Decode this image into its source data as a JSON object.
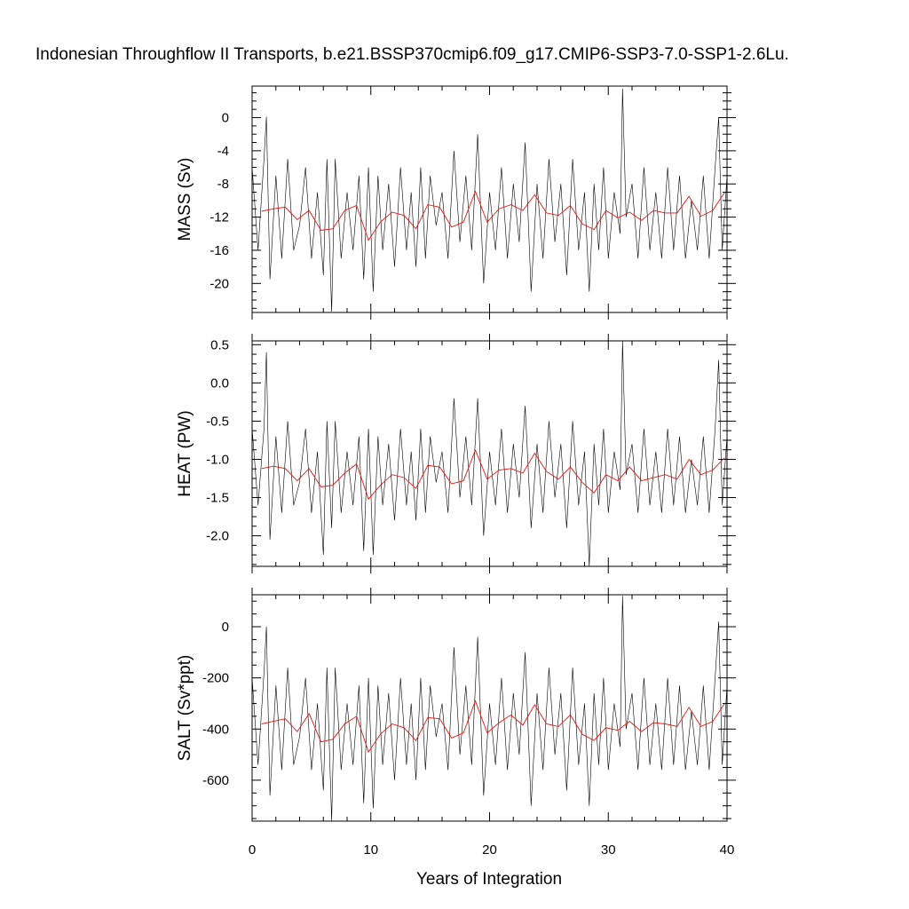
{
  "figure": {
    "title": "Indonesian Throughflow II Transports, b.e21.BSSP370cmip6.f09_g17.CMIP6-SSP3-7.0-SSP1-2.6Lu.",
    "xlabel": "Years of Integration"
  },
  "colors": {
    "raw_series": "#000000",
    "annual_mean_series": "#e8140f",
    "background": "#ffffff"
  },
  "chart_data": [
    {
      "type": "line",
      "ylabel": "MASS (Sv)",
      "xlim": [
        0,
        40
      ],
      "ylim": [
        -23.5,
        3.8
      ],
      "xticks": [
        0,
        10,
        20,
        30,
        40
      ],
      "yticks": [
        0,
        -4,
        -8,
        -12,
        -16,
        -20
      ],
      "ytick_labels": [
        "0",
        "-4",
        "-8",
        "-12",
        "-16",
        "-20"
      ],
      "series": [
        {
          "role": "monthly",
          "x": [
            0.0,
            0.5,
            1.0,
            1.2,
            1.5,
            2.0,
            2.5,
            3.0,
            3.5,
            4.0,
            4.5,
            5.0,
            5.5,
            6.0,
            6.3,
            6.7,
            7.0,
            7.5,
            8.0,
            8.5,
            9.0,
            9.4,
            9.8,
            10.2,
            10.6,
            11.0,
            11.5,
            12.0,
            12.5,
            13.0,
            13.4,
            13.8,
            14.2,
            14.6,
            15.0,
            15.5,
            16.0,
            16.5,
            17.0,
            17.5,
            18.0,
            18.5,
            19.0,
            19.5,
            20.0,
            20.5,
            21.0,
            21.5,
            22.0,
            22.5,
            23.0,
            23.5,
            24.0,
            24.5,
            25.0,
            25.5,
            26.0,
            26.5,
            27.0,
            27.5,
            28.0,
            28.4,
            28.8,
            29.2,
            29.6,
            30.0,
            30.5,
            31.0,
            31.2,
            31.5,
            32.0,
            32.5,
            33.0,
            33.5,
            34.0,
            34.5,
            35.0,
            35.5,
            36.0,
            36.5,
            37.0,
            37.5,
            38.0,
            38.5,
            39.0,
            39.3,
            39.6,
            40.0
          ],
          "values": [
            -6,
            -16,
            -5,
            0.1,
            -19.5,
            -7,
            -17,
            -5,
            -16,
            -13,
            -6,
            -17,
            -9,
            -19,
            -5,
            -23.4,
            -5,
            -17,
            -9,
            -16,
            -7,
            -19.5,
            -6,
            -21,
            -7,
            -16,
            -8,
            -18,
            -6,
            -16,
            -9,
            -18,
            -6,
            -17,
            -7,
            -13,
            -9,
            -17,
            -4,
            -15,
            -7,
            -16,
            -2,
            -20,
            -9,
            -16,
            -6,
            -17,
            -8,
            -15,
            -3,
            -21,
            -8,
            -17,
            -5,
            -15,
            -8,
            -19,
            -5,
            -16,
            -9,
            -21,
            -8,
            -16,
            -6,
            -17,
            -9,
            -14,
            3.5,
            -12,
            -8,
            -17,
            -6,
            -16,
            -9,
            -17,
            -6,
            -16,
            -7,
            -17,
            -10,
            -16,
            -7,
            -17,
            -6,
            0,
            -16,
            -7
          ]
        },
        {
          "role": "annual-mean",
          "x": [
            0.8,
            1.8,
            2.8,
            3.8,
            4.8,
            5.8,
            6.8,
            7.8,
            8.8,
            9.8,
            10.8,
            11.8,
            12.8,
            13.8,
            14.8,
            15.8,
            16.8,
            17.8,
            18.8,
            19.8,
            20.8,
            21.8,
            22.8,
            23.8,
            24.8,
            25.8,
            26.8,
            27.8,
            28.8,
            29.8,
            30.8,
            31.8,
            32.8,
            33.8,
            34.8,
            35.8,
            36.8,
            37.8,
            38.8,
            39.8
          ],
          "values": [
            -11.3,
            -11.0,
            -10.8,
            -12.3,
            -11.2,
            -13.6,
            -13.4,
            -11.2,
            -10.6,
            -14.8,
            -12.6,
            -11.4,
            -11.8,
            -13.4,
            -10.5,
            -10.8,
            -13.2,
            -12.6,
            -8.9,
            -12.6,
            -11.0,
            -10.5,
            -11.2,
            -9.3,
            -11.5,
            -11.8,
            -10.6,
            -12.8,
            -13.5,
            -11.2,
            -12.1,
            -11.4,
            -12.4,
            -11.2,
            -11.5,
            -11.5,
            -9.5,
            -11.9,
            -11.2,
            -9.0
          ]
        }
      ]
    },
    {
      "type": "line",
      "ylabel": "HEAT (PW)",
      "xlim": [
        0,
        40
      ],
      "ylim": [
        -2.4,
        0.55
      ],
      "xticks": [
        0,
        10,
        20,
        30,
        40
      ],
      "yticks": [
        0.5,
        0.0,
        -0.5,
        -1.0,
        -1.5,
        -2.0
      ],
      "ytick_labels": [
        "0.5",
        "0.0",
        "-0.5",
        "-1.0",
        "-1.5",
        "-2.0"
      ],
      "series": [
        {
          "role": "monthly",
          "x": [
            0.0,
            0.5,
            1.0,
            1.2,
            1.5,
            2.0,
            2.5,
            3.0,
            3.5,
            4.0,
            4.5,
            5.0,
            5.5,
            6.0,
            6.3,
            6.7,
            7.0,
            7.5,
            8.0,
            8.5,
            9.0,
            9.4,
            9.8,
            10.2,
            10.6,
            11.0,
            11.5,
            12.0,
            12.5,
            13.0,
            13.4,
            13.8,
            14.2,
            14.6,
            15.0,
            15.5,
            16.0,
            16.5,
            17.0,
            17.5,
            18.0,
            18.5,
            19.0,
            19.5,
            20.0,
            20.5,
            21.0,
            21.5,
            22.0,
            22.5,
            23.0,
            23.5,
            24.0,
            24.5,
            25.0,
            25.5,
            26.0,
            26.5,
            27.0,
            27.5,
            28.0,
            28.4,
            28.8,
            29.2,
            29.6,
            30.0,
            30.5,
            31.0,
            31.2,
            31.5,
            32.0,
            32.5,
            33.0,
            33.5,
            34.0,
            34.5,
            35.0,
            35.5,
            36.0,
            36.5,
            37.0,
            37.5,
            38.0,
            38.5,
            39.0,
            39.3,
            39.6,
            40.0
          ],
          "values": [
            -0.6,
            -1.6,
            -0.6,
            0.4,
            -2.05,
            -0.7,
            -1.7,
            -0.5,
            -1.6,
            -1.3,
            -0.6,
            -1.7,
            -0.9,
            -2.25,
            -0.5,
            -1.9,
            -0.5,
            -1.7,
            -0.9,
            -1.6,
            -0.7,
            -2.2,
            -0.6,
            -2.25,
            -0.7,
            -1.6,
            -0.8,
            -1.8,
            -0.6,
            -1.6,
            -0.9,
            -1.8,
            -0.6,
            -1.7,
            -0.7,
            -1.3,
            -0.9,
            -1.7,
            -0.2,
            -1.5,
            -0.7,
            -1.6,
            -0.2,
            -2.0,
            -0.9,
            -1.6,
            -0.6,
            -1.7,
            -0.8,
            -1.5,
            -0.3,
            -1.9,
            -0.8,
            -1.7,
            -0.5,
            -1.5,
            -0.8,
            -1.9,
            -0.5,
            -1.6,
            -0.9,
            -2.4,
            -0.8,
            -1.6,
            -0.6,
            -1.7,
            -0.9,
            -1.4,
            0.55,
            -1.2,
            -0.8,
            -1.7,
            -0.6,
            -1.6,
            -0.9,
            -1.7,
            -0.6,
            -1.6,
            -0.7,
            -1.7,
            -1.0,
            -1.6,
            -0.7,
            -1.7,
            -0.6,
            0.3,
            -1.6,
            -0.7
          ]
        },
        {
          "role": "annual-mean",
          "x": [
            0.8,
            1.8,
            2.8,
            3.8,
            4.8,
            5.8,
            6.8,
            7.8,
            8.8,
            9.8,
            10.8,
            11.8,
            12.8,
            13.8,
            14.8,
            15.8,
            16.8,
            17.8,
            18.8,
            19.8,
            20.8,
            21.8,
            22.8,
            23.8,
            24.8,
            25.8,
            26.8,
            27.8,
            28.8,
            29.8,
            30.8,
            31.8,
            32.8,
            33.8,
            34.8,
            35.8,
            36.8,
            37.8,
            38.8,
            39.8
          ],
          "values": [
            -1.12,
            -1.09,
            -1.12,
            -1.28,
            -1.12,
            -1.36,
            -1.34,
            -1.18,
            -1.06,
            -1.52,
            -1.34,
            -1.2,
            -1.24,
            -1.38,
            -1.08,
            -1.1,
            -1.32,
            -1.28,
            -0.88,
            -1.26,
            -1.14,
            -1.12,
            -1.18,
            -0.92,
            -1.16,
            -1.26,
            -1.1,
            -1.3,
            -1.44,
            -1.2,
            -1.28,
            -1.1,
            -1.28,
            -1.24,
            -1.2,
            -1.26,
            -1.0,
            -1.2,
            -1.14,
            -0.98
          ]
        }
      ]
    },
    {
      "type": "line",
      "ylabel": "SALT (Sv*ppt)",
      "xlim": [
        0,
        40
      ],
      "ylim": [
        -760,
        125
      ],
      "xticks": [
        0,
        10,
        20,
        30,
        40
      ],
      "yticks": [
        0,
        -200,
        -400,
        -600
      ],
      "ytick_labels": [
        "0",
        "-200",
        "-400",
        "-600"
      ],
      "series": [
        {
          "role": "monthly",
          "x": [
            0.0,
            0.5,
            1.0,
            1.2,
            1.5,
            2.0,
            2.5,
            3.0,
            3.5,
            4.0,
            4.5,
            5.0,
            5.5,
            6.0,
            6.3,
            6.7,
            7.0,
            7.5,
            8.0,
            8.5,
            9.0,
            9.4,
            9.8,
            10.2,
            10.6,
            11.0,
            11.5,
            12.0,
            12.5,
            13.0,
            13.4,
            13.8,
            14.2,
            14.6,
            15.0,
            15.5,
            16.0,
            16.5,
            17.0,
            17.5,
            18.0,
            18.5,
            19.0,
            19.5,
            20.0,
            20.5,
            21.0,
            21.5,
            22.0,
            22.5,
            23.0,
            23.5,
            24.0,
            24.5,
            25.0,
            25.5,
            26.0,
            26.5,
            27.0,
            27.5,
            28.0,
            28.4,
            28.8,
            29.2,
            29.6,
            30.0,
            30.5,
            31.0,
            31.2,
            31.5,
            32.0,
            32.5,
            33.0,
            33.5,
            34.0,
            34.5,
            35.0,
            35.5,
            36.0,
            36.5,
            37.0,
            37.5,
            38.0,
            38.5,
            39.0,
            39.3,
            39.6,
            40.0
          ],
          "values": [
            -200,
            -540,
            -180,
            0,
            -660,
            -230,
            -560,
            -160,
            -540,
            -430,
            -200,
            -560,
            -300,
            -640,
            -160,
            -760,
            -160,
            -560,
            -300,
            -540,
            -230,
            -690,
            -200,
            -710,
            -230,
            -540,
            -260,
            -600,
            -200,
            -540,
            -300,
            -600,
            -200,
            -560,
            -230,
            -430,
            -300,
            -560,
            -80,
            -500,
            -230,
            -540,
            -40,
            -660,
            -300,
            -540,
            -200,
            -560,
            -260,
            -500,
            -100,
            -700,
            -260,
            -560,
            -160,
            -500,
            -260,
            -640,
            -160,
            -540,
            -300,
            -700,
            -260,
            -540,
            -200,
            -560,
            -300,
            -470,
            120,
            -400,
            -260,
            -560,
            -200,
            -540,
            -300,
            -560,
            -200,
            -540,
            -230,
            -560,
            -330,
            -540,
            -230,
            -560,
            -200,
            20,
            -540,
            -230
          ]
        },
        {
          "role": "annual-mean",
          "x": [
            0.8,
            1.8,
            2.8,
            3.8,
            4.8,
            5.8,
            6.8,
            7.8,
            8.8,
            9.8,
            10.8,
            11.8,
            12.8,
            13.8,
            14.8,
            15.8,
            16.8,
            17.8,
            18.8,
            19.8,
            20.8,
            21.8,
            22.8,
            23.8,
            24.8,
            25.8,
            26.8,
            27.8,
            28.8,
            29.8,
            30.8,
            31.8,
            32.8,
            33.8,
            34.8,
            35.8,
            36.8,
            37.8,
            38.8,
            39.8
          ],
          "values": [
            -380,
            -370,
            -360,
            -410,
            -340,
            -450,
            -440,
            -380,
            -350,
            -490,
            -420,
            -380,
            -395,
            -445,
            -355,
            -360,
            -435,
            -415,
            -290,
            -415,
            -375,
            -345,
            -385,
            -305,
            -380,
            -390,
            -345,
            -420,
            -445,
            -395,
            -405,
            -370,
            -410,
            -375,
            -380,
            -390,
            -315,
            -390,
            -370,
            -300
          ]
        }
      ]
    }
  ]
}
